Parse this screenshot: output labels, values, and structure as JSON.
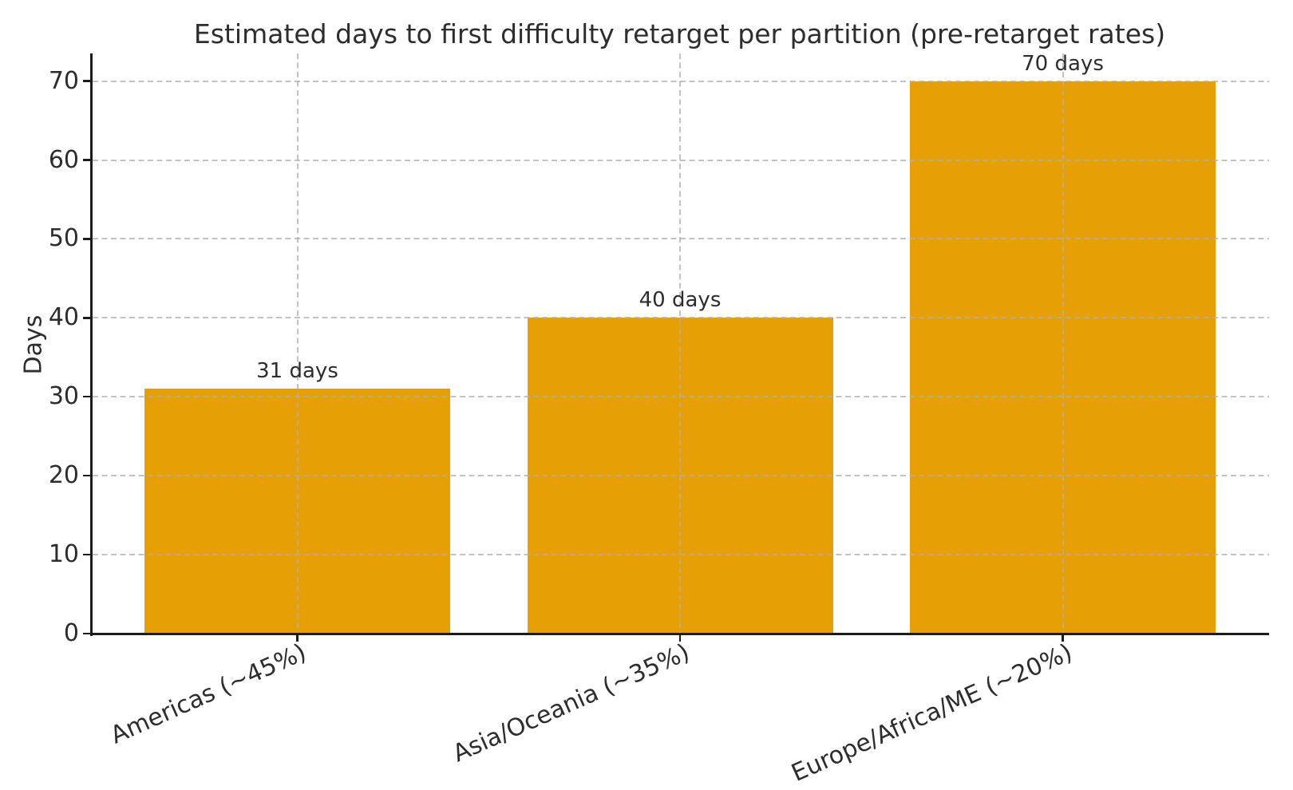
{
  "chart_data": {
    "type": "bar",
    "title": "Estimated days to first difficulty retarget per partition (pre-retarget rates)",
    "xlabel": "",
    "ylabel": "Days",
    "categories": [
      "Americas (~45%)",
      "Asia/Oceania (~35%)",
      "Europe/Africa/ME (~20%)"
    ],
    "values": [
      31,
      40,
      70
    ],
    "bar_value_labels": [
      "31 days",
      "40 days",
      "70 days"
    ],
    "yticks": [
      0,
      10,
      20,
      30,
      40,
      50,
      60,
      70
    ],
    "ylim": [
      0,
      73.2
    ],
    "grid": "both-axes-dashed",
    "grid_on_top_of_bars": true,
    "legend": "none",
    "x_tick_rotation_deg": 24,
    "bar_color": "#E6A005",
    "grid_color": "#c8c8c8",
    "axis_color": "#1c1c1c",
    "text_color": "#2d2d2d",
    "background_color": "#ffffff"
  }
}
